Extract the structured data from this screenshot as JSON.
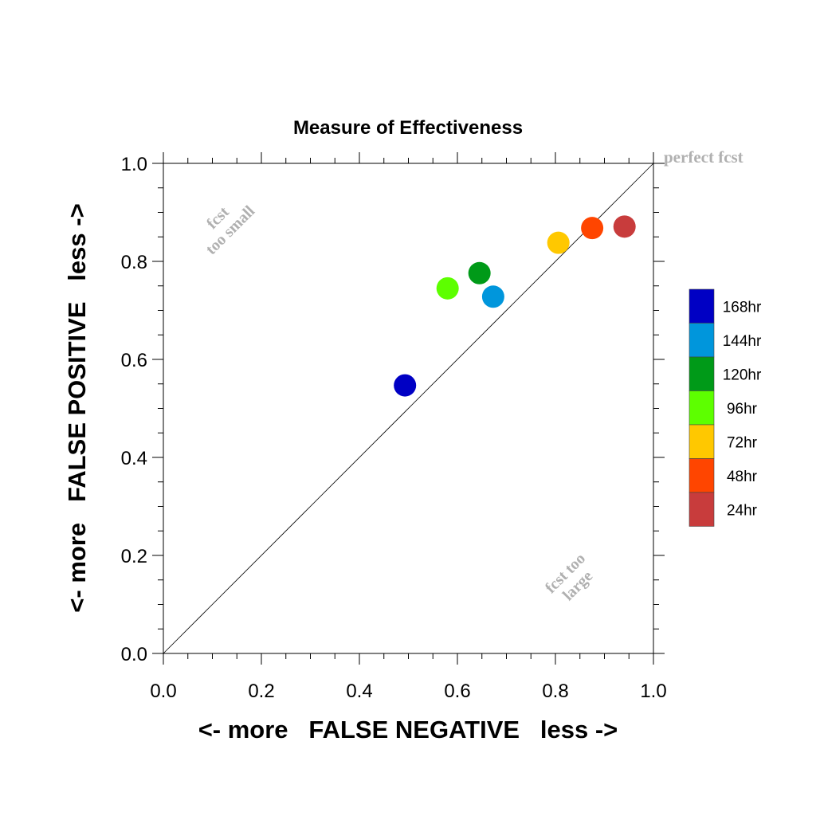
{
  "chart_data": {
    "type": "scatter",
    "title": "Measure of Effectiveness",
    "xlabel": "<- more   FALSE NEGATIVE   less ->",
    "ylabel": "<- more   FALSE POSITIVE   less ->",
    "xlim": [
      0,
      1
    ],
    "ylim": [
      0,
      1
    ],
    "x_ticks": [
      "0.0",
      "0.2",
      "0.4",
      "0.6",
      "0.8",
      "1.0"
    ],
    "y_ticks": [
      "0.0",
      "0.2",
      "0.4",
      "0.6",
      "0.8",
      "1.0"
    ],
    "grid": false,
    "reference_line": {
      "from": [
        0,
        0
      ],
      "to": [
        1,
        1
      ]
    },
    "annotations": {
      "perfect": "perfect fcst",
      "too_small_1": "fcst",
      "too_small_2": "too small",
      "too_large_1": "fcst too",
      "too_large_2": "large"
    },
    "legend_position": "right",
    "series": [
      {
        "name": "168hr",
        "color": "#0000c4",
        "x": 0.493,
        "y": 0.547
      },
      {
        "name": "144hr",
        "color": "#0096dc",
        "x": 0.673,
        "y": 0.728
      },
      {
        "name": "120hr",
        "color": "#009a18",
        "x": 0.645,
        "y": 0.776
      },
      {
        "name": "96hr",
        "color": "#5dff00",
        "x": 0.58,
        "y": 0.745
      },
      {
        "name": "72hr",
        "color": "#ffc800",
        "x": 0.806,
        "y": 0.838
      },
      {
        "name": "48hr",
        "color": "#ff4500",
        "x": 0.875,
        "y": 0.868
      },
      {
        "name": "24hr",
        "color": "#c83c3c",
        "x": 0.941,
        "y": 0.871
      }
    ]
  }
}
